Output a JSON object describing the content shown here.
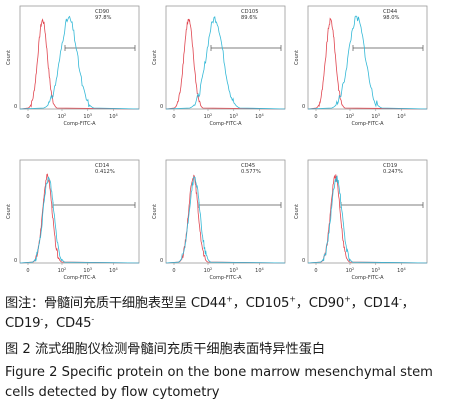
{
  "figure": {
    "panels": [
      {
        "marker": "CD90",
        "percent": "97.8%",
        "positive": true
      },
      {
        "marker": "CD105",
        "percent": "89.6%",
        "positive": true
      },
      {
        "marker": "CD44",
        "percent": "98.0%",
        "positive": true
      },
      {
        "marker": "CD14",
        "percent": "0.412%",
        "positive": false
      },
      {
        "marker": "CD45",
        "percent": "0.577%",
        "positive": false
      },
      {
        "marker": "CD19",
        "percent": "0.247%",
        "positive": false
      }
    ],
    "x_axis_label": "Comp-FITC-A",
    "y_axis_label": "Count",
    "x_ticks": [
      "0",
      "10",
      "10",
      "10"
    ],
    "x_tick_exponents": [
      "",
      "2",
      "3",
      "4"
    ],
    "y_ticks": [
      "0"
    ],
    "colors": {
      "isotype": "#e0454f",
      "stained": "#33b8d6",
      "frame": "#9a9a9a",
      "gate": "#555555"
    }
  },
  "caption": {
    "note_prefix": "图注：骨髓间充质干细胞表型呈 CD44",
    "note_sup1": "+",
    "note_mid1": "，CD105",
    "note_sup2": "+",
    "note_mid2": "，CD90",
    "note_sup3": "+",
    "note_mid3": "，CD14",
    "note_sup4": "-",
    "note_mid4": "，CD19",
    "note_sup5": "-",
    "note_mid5": "，CD45",
    "note_sup6": "-",
    "title_cn": "图 2   流式细胞仪检测骨髓间充质干细胞表面特异性蛋白",
    "title_en": "Figure 2   Specific protein on the bone marrow mesenchymal stem cells detected by flow cytometry"
  }
}
